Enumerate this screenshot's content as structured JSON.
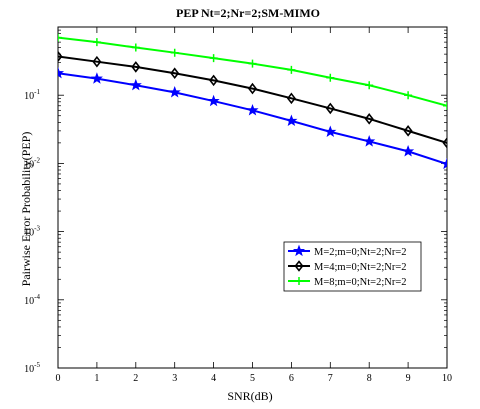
{
  "chart_data": {
    "type": "line",
    "title": "PEP Nt=2;Nr=2;SM-MIMO",
    "xlabel": "SNR(dB)",
    "ylabel": "Pairwise Error Probability(PEP)",
    "x": [
      0,
      1,
      2,
      3,
      4,
      5,
      6,
      7,
      8,
      9,
      10
    ],
    "xlim": [
      0,
      10
    ],
    "ylim": [
      1e-05,
      1
    ],
    "yscale": "log",
    "y_tick_labels": [
      {
        "base": "10",
        "exp": "-5",
        "value": 1e-05
      },
      {
        "base": "10",
        "exp": "-4",
        "value": 0.0001
      },
      {
        "base": "10",
        "exp": "-3",
        "value": 0.001
      },
      {
        "base": "10",
        "exp": "-2",
        "value": 0.01
      },
      {
        "base": "10",
        "exp": "-1",
        "value": 0.1
      }
    ],
    "grid": false,
    "legend_position": "bottom-right",
    "series": [
      {
        "name": "M=2;m=0;Nt=2;Nr=2",
        "color": "#0000ff",
        "marker": "star",
        "values": [
          0.21,
          0.175,
          0.14,
          0.11,
          0.082,
          0.06,
          0.042,
          0.029,
          0.021,
          0.015,
          0.0098
        ]
      },
      {
        "name": "M=4;m=0;Nt=2;Nr=2",
        "color": "#000000",
        "marker": "diamond",
        "values": [
          0.37,
          0.31,
          0.26,
          0.21,
          0.165,
          0.125,
          0.09,
          0.064,
          0.045,
          0.03,
          0.02
        ]
      },
      {
        "name": "M=8;m=0;Nt=2;Nr=2",
        "color": "#00ff00",
        "marker": "plus",
        "values": [
          0.7,
          0.6,
          0.5,
          0.42,
          0.35,
          0.29,
          0.235,
          0.18,
          0.14,
          0.1,
          0.07
        ]
      }
    ]
  }
}
